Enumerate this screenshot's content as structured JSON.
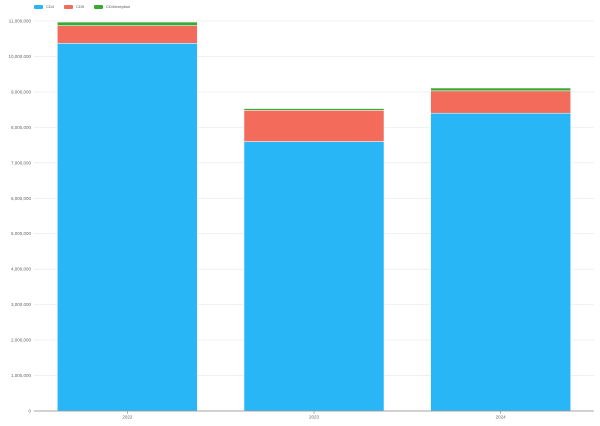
{
  "colors": {
    "background": "#ffffff",
    "grid": "#e6e6e6",
    "axis": "#888888",
    "tick_text": "#666666"
  },
  "chart_data": {
    "type": "bar",
    "stacked": true,
    "categories": [
      "2022",
      "2023",
      "2024"
    ],
    "series": [
      {
        "name": "CD4",
        "color": "#29b6f6",
        "values": [
          10370000,
          7600000,
          8400000
        ]
      },
      {
        "name": "CD5",
        "color": "#f26b5b",
        "values": [
          500000,
          880000,
          630000
        ]
      },
      {
        "name": "CD4/exeption",
        "color": "#3aaa35",
        "values": [
          100000,
          50000,
          80000
        ]
      }
    ],
    "ylim": [
      0,
      11000000
    ],
    "yticks": [
      0,
      1000000,
      2000000,
      3000000,
      4000000,
      5000000,
      6000000,
      7000000,
      8000000,
      9000000,
      10000000,
      11000000
    ],
    "ytick_labels": [
      "0",
      "1,000,000",
      "2,000,000",
      "3,000,000",
      "4,000,000",
      "5,000,000",
      "6,000,000",
      "7,000,000",
      "8,000,000",
      "9,000,000",
      "10,000,000",
      "11,000,000"
    ],
    "grid": true,
    "legend": "top-left"
  }
}
